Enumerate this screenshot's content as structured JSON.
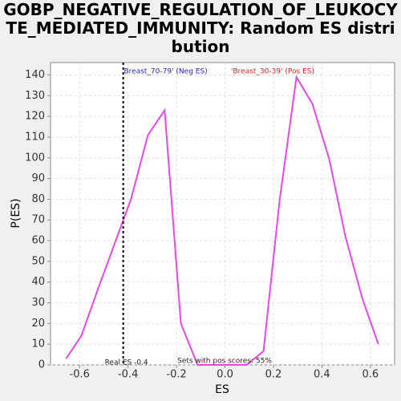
{
  "chart_data": {
    "type": "line",
    "title": "GOBP_NEGATIVE_REGULATION_OF_LEUKOCYTE_MEDIATED_IMMUNITY: Random ES distribution",
    "x_label": "ES",
    "y_label": "P(ES)",
    "x": [
      -0.656,
      -0.593,
      -0.523,
      -0.454,
      -0.388,
      -0.318,
      -0.249,
      -0.182,
      -0.113,
      -0.047,
      0.023,
      0.089,
      0.159,
      0.225,
      0.295,
      0.361,
      0.431,
      0.497,
      0.567,
      0.633
    ],
    "series": [
      {
        "name": "Random ES",
        "color": "#ee44ee",
        "values": [
          3,
          14,
          37,
          59,
          80,
          111,
          123,
          20,
          0,
          0,
          0,
          0,
          6.6,
          79,
          139,
          126,
          99,
          62,
          32,
          10
        ]
      }
    ],
    "xlim": [
      -0.72,
      0.7
    ],
    "ylim": [
      0,
      146
    ],
    "xticks": [
      -0.6,
      -0.4,
      -0.2,
      {
        "value": 0,
        "label": "0.0"
      },
      0.2,
      0.4,
      0.6
    ],
    "yticks": [
      0,
      10,
      20,
      30,
      40,
      50,
      60,
      70,
      80,
      90,
      100,
      110,
      120,
      130,
      140
    ],
    "grid": true,
    "real_es": -0.42,
    "real_es_label": "Real ES -0.4",
    "pos_scores_label": "Sets with pos scores: 55%",
    "neg_label": "'Breast_70-79' (Neg ES)",
    "neg_color": "#2222cc",
    "pos_label": "'Breast_30-39' (Pos ES)",
    "pos_color": "#dd2222"
  }
}
